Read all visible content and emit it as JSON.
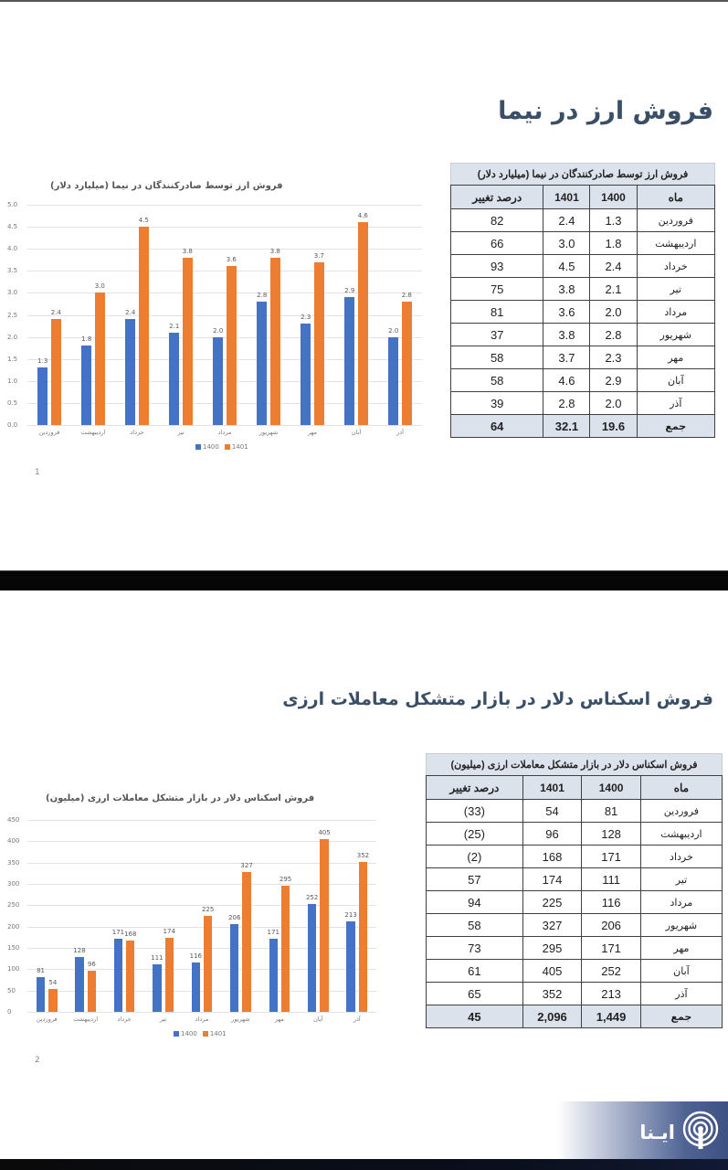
{
  "slides": [
    {
      "title": "فروش ارز در نیما",
      "page_number": "1",
      "chart": {
        "title": "فروش ارز توسط صادرکنندگان در نیما (میلیارد دلار)"
      },
      "table": {
        "caption": "فروش ارز توسط صادرکنندگان در نیما (میلیارد دلار)",
        "headers": [
          "ماه",
          "1400",
          "1401",
          "درصد تغییر"
        ],
        "rows": [
          [
            "فروردین",
            "1.3",
            "2.4",
            "82"
          ],
          [
            "اردیبهشت",
            "1.8",
            "3.0",
            "66"
          ],
          [
            "خرداد",
            "2.4",
            "4.5",
            "93"
          ],
          [
            "تیر",
            "2.1",
            "3.8",
            "75"
          ],
          [
            "مرداد",
            "2.0",
            "3.6",
            "81"
          ],
          [
            "شهریور",
            "2.8",
            "3.8",
            "37"
          ],
          [
            "مهر",
            "2.3",
            "3.7",
            "58"
          ],
          [
            "آبان",
            "2.9",
            "4.6",
            "58"
          ],
          [
            "آذر",
            "2.0",
            "2.8",
            "39"
          ]
        ],
        "total": [
          "جمع",
          "19.6",
          "32.1",
          "64"
        ]
      }
    },
    {
      "title": "فروش اسکناس دلار در بازار متشکل معاملات ارزی",
      "page_number": "2",
      "chart": {
        "title": "فروش اسکناس دلار در بازار متشکل معاملات ارزی (میلیون)"
      },
      "table": {
        "caption": "فروش اسکناس دلار در بازار متشکل معاملات ارزی (میلیون)",
        "headers": [
          "ماه",
          "1400",
          "1401",
          "درصد تغییر"
        ],
        "rows": [
          [
            "فروردین",
            "81",
            "54",
            "(33)"
          ],
          [
            "اردیبهشت",
            "128",
            "96",
            "(25)"
          ],
          [
            "خرداد",
            "171",
            "168",
            "(2)"
          ],
          [
            "تیر",
            "111",
            "174",
            "57"
          ],
          [
            "مرداد",
            "116",
            "225",
            "94"
          ],
          [
            "شهریور",
            "206",
            "327",
            "58"
          ],
          [
            "مهر",
            "171",
            "295",
            "73"
          ],
          [
            "آبان",
            "252",
            "405",
            "61"
          ],
          [
            "آذر",
            "213",
            "352",
            "65"
          ]
        ],
        "total": [
          "جمع",
          "1,449",
          "2,096",
          "45"
        ]
      }
    }
  ],
  "logo": {
    "text": "ایـنا",
    "icon": "broadcast-antenna-icon"
  },
  "colors": {
    "series_1400": "#4472c4",
    "series_1401": "#ed7d31",
    "title": "#3a4f66",
    "table_header": "#dce2ec"
  },
  "chart_data": [
    {
      "type": "bar",
      "title": "فروش ارز توسط صادرکنندگان در نیما (میلیارد دلار)",
      "categories": [
        "فروردین",
        "اردیبهشت",
        "خرداد",
        "تیر",
        "مرداد",
        "شهریور",
        "مهر",
        "آبان",
        "آذر"
      ],
      "series": [
        {
          "name": "1400",
          "values": [
            1.3,
            1.8,
            2.4,
            2.1,
            2.0,
            2.8,
            2.3,
            2.9,
            2.0
          ],
          "color": "#4472c4"
        },
        {
          "name": "1401",
          "values": [
            2.4,
            3.0,
            4.5,
            3.8,
            3.6,
            3.8,
            3.7,
            4.6,
            2.8
          ],
          "color": "#ed7d31"
        }
      ],
      "yticks": [
        "0.0",
        "0.5",
        "1.0",
        "1.5",
        "2.0",
        "2.5",
        "3.0",
        "3.5",
        "4.0",
        "4.5",
        "5.0"
      ],
      "ylim": [
        0,
        5
      ],
      "xlabel": "",
      "ylabel": "",
      "grid": true,
      "legend_position": "bottom"
    },
    {
      "type": "bar",
      "title": "فروش اسکناس دلار در بازار متشکل معاملات ارزی (میلیون)",
      "categories": [
        "فروردین",
        "اردیبهشت",
        "خرداد",
        "تیر",
        "مرداد",
        "شهریور",
        "مهر",
        "آبان",
        "آذر"
      ],
      "series": [
        {
          "name": "1400",
          "values": [
            81,
            128,
            171,
            111,
            116,
            206,
            171,
            252,
            213
          ],
          "color": "#4472c4"
        },
        {
          "name": "1401",
          "values": [
            54,
            96,
            168,
            174,
            225,
            327,
            295,
            405,
            352
          ],
          "color": "#ed7d31"
        }
      ],
      "yticks": [
        "0",
        "50",
        "100",
        "150",
        "200",
        "250",
        "300",
        "350",
        "400",
        "450"
      ],
      "ylim": [
        0,
        450
      ],
      "xlabel": "",
      "ylabel": "",
      "grid": true,
      "legend_position": "bottom"
    }
  ]
}
